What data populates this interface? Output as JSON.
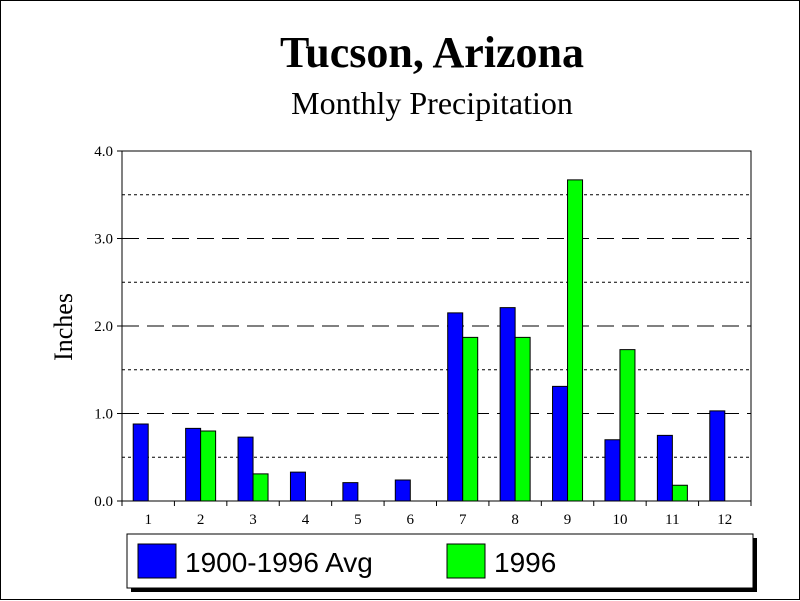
{
  "chart_data": {
    "type": "bar",
    "title": "Tucson, Arizona",
    "subtitle": "Monthly Precipitation",
    "xlabel": "",
    "ylabel": "Inches",
    "categories": [
      "1",
      "2",
      "3",
      "4",
      "5",
      "6",
      "7",
      "8",
      "9",
      "10",
      "11",
      "12"
    ],
    "yticks": [
      "0.0",
      "1.0",
      "2.0",
      "3.0",
      "4.0"
    ],
    "ylim": [
      0,
      4
    ],
    "grid": true,
    "legend_position": "bottom",
    "series": [
      {
        "name": "1900-1996 Avg",
        "color": "#0000ff",
        "values": [
          0.88,
          0.83,
          0.73,
          0.33,
          0.21,
          0.24,
          2.15,
          2.21,
          1.31,
          0.7,
          0.75,
          1.03
        ]
      },
      {
        "name": "1996",
        "color": "#00ff00",
        "values": [
          0,
          0.8,
          0.31,
          0,
          0,
          0,
          1.87,
          1.87,
          3.67,
          1.73,
          0.18,
          0
        ]
      }
    ]
  }
}
